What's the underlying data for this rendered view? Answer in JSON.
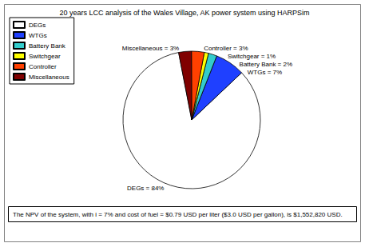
{
  "chart_data": {
    "type": "pie",
    "title": "20 years LCC analysis of the Wales Village, AK power system using HARPSim",
    "categories": [
      "DEGs",
      "WTGs",
      "Battery Bank",
      "Switchgear",
      "Controller",
      "Miscellaneous"
    ],
    "values": [
      84,
      7,
      2,
      1,
      3,
      3
    ],
    "value_labels": [
      "DEGs = 84%",
      "WTGs = 7%",
      "Battery Bank = 2%",
      "Switchgear = 1%",
      "Controller = 3%",
      "Miscellaneous = 3%"
    ],
    "colors": [
      "#ffffff",
      "#1f40ff",
      "#33cccc",
      "#ffff00",
      "#ff4000",
      "#800000"
    ],
    "data_labels": true,
    "legend": "upper left",
    "annotation": "The NPV of the system, with i = 7% and cost of fuel = $0.79 USD per liter ($3.0 USD per gallon), is $1,552,820 USD."
  }
}
